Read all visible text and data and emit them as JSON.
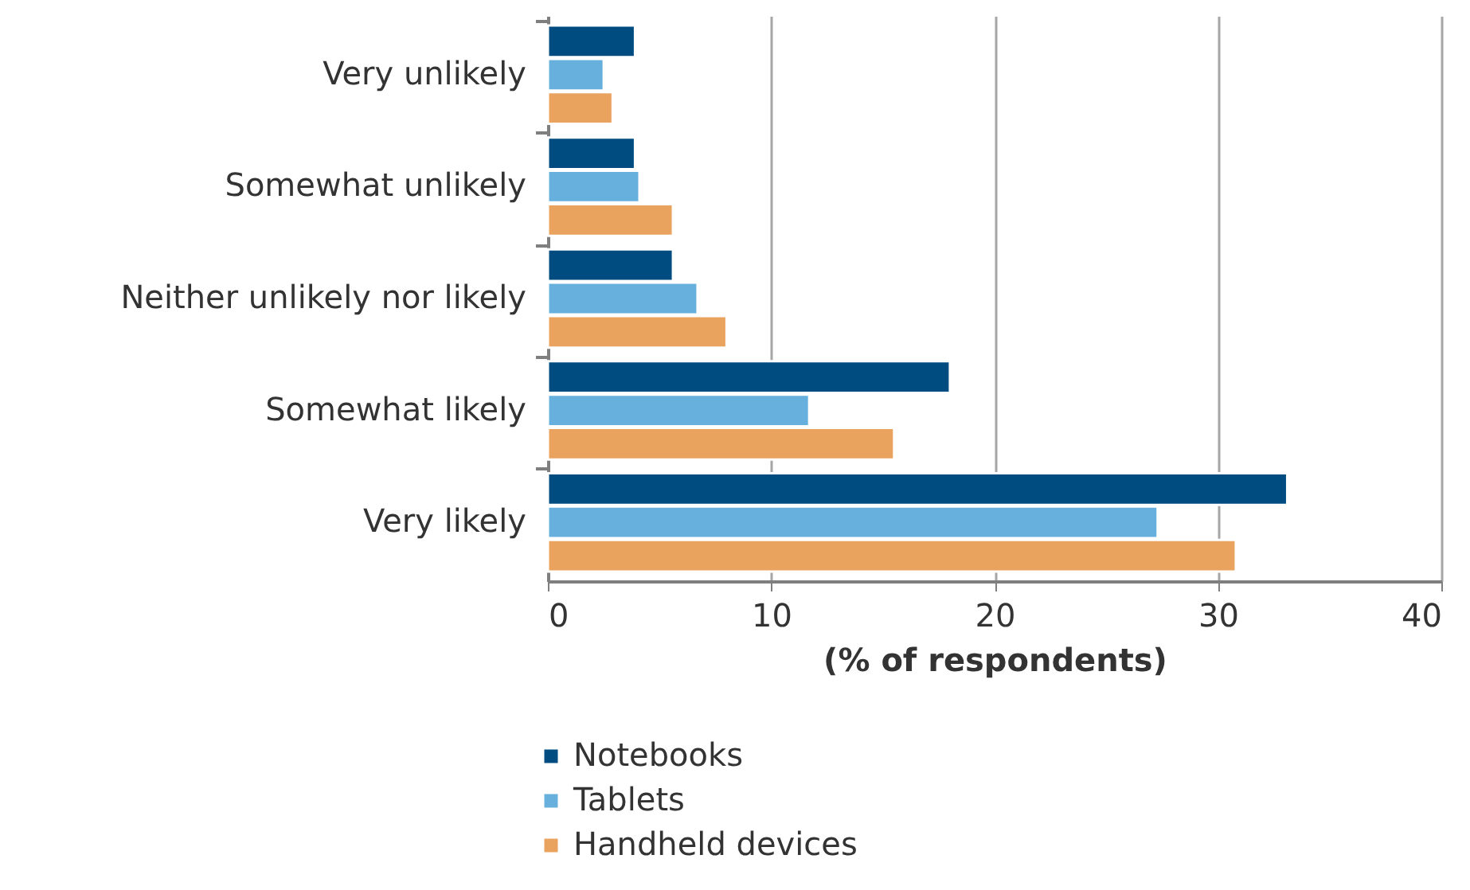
{
  "chart_data": {
    "type": "bar",
    "orientation": "horizontal",
    "xlabel": "(% of respondents)",
    "categories": [
      "Very unlikely",
      "Somewhat unlikely",
      "Neither unlikely nor likely",
      "Somewhat likely",
      "Very likely"
    ],
    "series": [
      {
        "name": "Notebooks",
        "color": "#004c80",
        "values": [
          3.9,
          3.9,
          5.6,
          18.0,
          33.1
        ]
      },
      {
        "name": "Tablets",
        "color": "#67b0de",
        "values": [
          2.5,
          4.1,
          6.7,
          11.7,
          27.3
        ]
      },
      {
        "name": "Handheld devices",
        "color": "#eaa25f",
        "values": [
          2.9,
          5.6,
          8.0,
          15.5,
          30.8
        ]
      }
    ],
    "xlim": [
      0,
      40
    ],
    "xticks": [
      0,
      10,
      20,
      30,
      40
    ],
    "grid": "x",
    "legend": "bottom left"
  }
}
